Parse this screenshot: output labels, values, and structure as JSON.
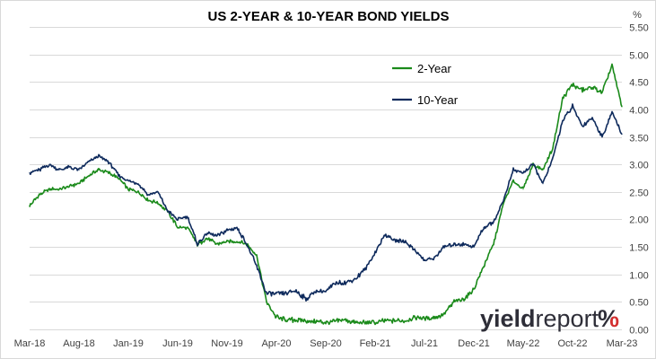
{
  "chart_data": {
    "type": "line",
    "title": "US 2-YEAR & 10-YEAR BOND YIELDS",
    "unit_label": "%",
    "yaxis_side": "right",
    "ylim": [
      0,
      5.5
    ],
    "yticks": [
      "5.50",
      "5.00",
      "4.50",
      "4.00",
      "3.50",
      "3.00",
      "2.50",
      "2.00",
      "1.50",
      "1.00",
      "0.50",
      "0.00"
    ],
    "xticks": [
      "Mar-18",
      "Aug-18",
      "Jan-19",
      "Jun-19",
      "Nov-19",
      "Apr-20",
      "Sep-20",
      "Feb-21",
      "Jul-21",
      "Dec-21",
      "May-22",
      "Oct-22",
      "Mar-23"
    ],
    "grid": true,
    "legend_position": "top-right",
    "x": [
      "2018-03",
      "2018-04",
      "2018-05",
      "2018-06",
      "2018-07",
      "2018-08",
      "2018-09",
      "2018-10",
      "2018-11",
      "2018-12",
      "2019-01",
      "2019-02",
      "2019-03",
      "2019-04",
      "2019-05",
      "2019-06",
      "2019-07",
      "2019-08",
      "2019-09",
      "2019-10",
      "2019-11",
      "2019-12",
      "2020-01",
      "2020-02",
      "2020-03",
      "2020-04",
      "2020-05",
      "2020-06",
      "2020-07",
      "2020-08",
      "2020-09",
      "2020-10",
      "2020-11",
      "2020-12",
      "2021-01",
      "2021-02",
      "2021-03",
      "2021-04",
      "2021-05",
      "2021-06",
      "2021-07",
      "2021-08",
      "2021-09",
      "2021-10",
      "2021-11",
      "2021-12",
      "2022-01",
      "2022-02",
      "2022-03",
      "2022-04",
      "2022-05",
      "2022-06",
      "2022-07",
      "2022-08",
      "2022-09",
      "2022-10",
      "2022-11",
      "2022-12",
      "2023-01",
      "2023-02",
      "2023-03"
    ],
    "series": [
      {
        "name": "2-Year",
        "color": "#1a8a1a",
        "values": [
          2.25,
          2.45,
          2.55,
          2.55,
          2.6,
          2.65,
          2.8,
          2.9,
          2.85,
          2.75,
          2.55,
          2.5,
          2.35,
          2.3,
          2.15,
          1.85,
          1.85,
          1.55,
          1.65,
          1.55,
          1.6,
          1.6,
          1.55,
          1.35,
          0.5,
          0.22,
          0.17,
          0.17,
          0.15,
          0.14,
          0.13,
          0.15,
          0.17,
          0.12,
          0.12,
          0.12,
          0.16,
          0.16,
          0.15,
          0.22,
          0.2,
          0.22,
          0.28,
          0.5,
          0.55,
          0.73,
          1.15,
          1.55,
          2.3,
          2.7,
          2.55,
          3.0,
          2.9,
          3.3,
          4.2,
          4.45,
          4.35,
          4.4,
          4.3,
          4.8,
          4.05
        ]
      },
      {
        "name": "10-Year",
        "color": "#0e2a5c",
        "values": [
          2.85,
          2.9,
          3.0,
          2.9,
          2.95,
          2.9,
          3.05,
          3.15,
          3.05,
          2.8,
          2.7,
          2.65,
          2.45,
          2.5,
          2.15,
          2.0,
          2.05,
          1.55,
          1.75,
          1.7,
          1.8,
          1.85,
          1.55,
          1.15,
          0.65,
          0.65,
          0.65,
          0.7,
          0.55,
          0.7,
          0.68,
          0.85,
          0.85,
          0.92,
          1.1,
          1.4,
          1.72,
          1.62,
          1.6,
          1.45,
          1.25,
          1.3,
          1.5,
          1.55,
          1.55,
          1.5,
          1.85,
          1.95,
          2.35,
          2.9,
          2.85,
          3.0,
          2.65,
          3.1,
          3.8,
          4.05,
          3.7,
          3.85,
          3.5,
          3.95,
          3.55
        ]
      }
    ]
  },
  "logo": {
    "text_main": "yield",
    "text_report": "report",
    "text_pct": "%",
    "color_dark": "#2e2e38",
    "color_red": "#d32f2f",
    "color_green": "#2e9d3a"
  }
}
